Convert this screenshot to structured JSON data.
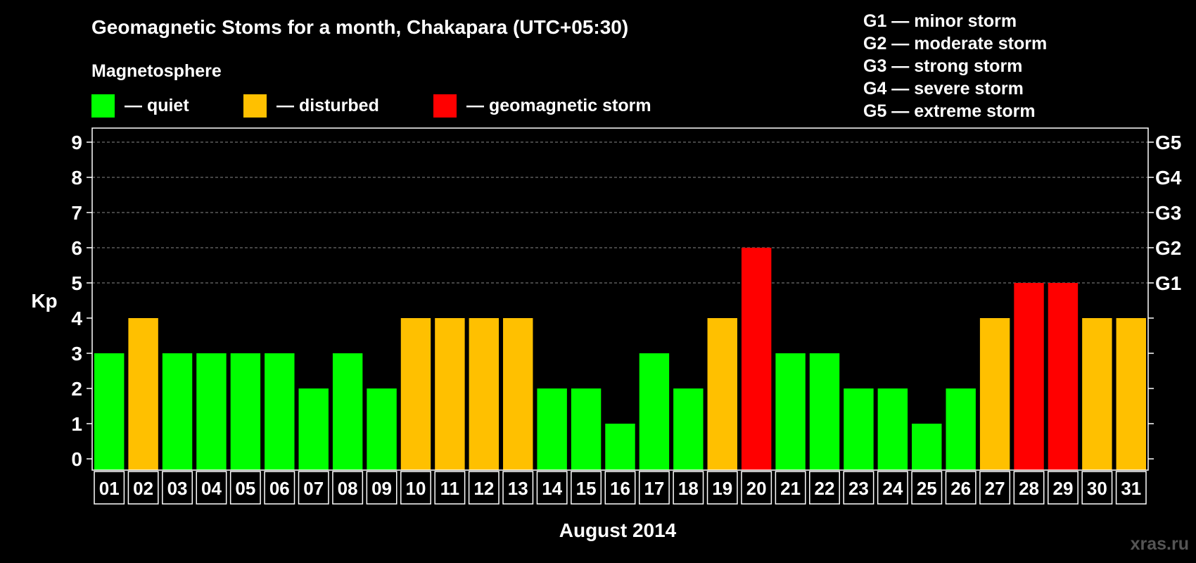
{
  "chart_data": {
    "type": "bar",
    "title": "Geomagnetic Stoms for a month, Chakapara (UTC+05:30)",
    "xlabel": "August 2014",
    "ylabel": "Kp",
    "ylim": [
      0,
      9
    ],
    "y_ticks": [
      "0",
      "1",
      "2",
      "3",
      "4",
      "5",
      "6",
      "7",
      "8",
      "9"
    ],
    "right_ticks": [
      {
        "kp": 5,
        "label": "G1"
      },
      {
        "kp": 6,
        "label": "G2"
      },
      {
        "kp": 7,
        "label": "G3"
      },
      {
        "kp": 8,
        "label": "G4"
      },
      {
        "kp": 9,
        "label": "G5"
      }
    ],
    "categories": [
      "01",
      "02",
      "03",
      "04",
      "05",
      "06",
      "07",
      "08",
      "09",
      "10",
      "11",
      "12",
      "13",
      "14",
      "15",
      "16",
      "17",
      "18",
      "19",
      "20",
      "21",
      "22",
      "23",
      "24",
      "25",
      "26",
      "27",
      "28",
      "29",
      "30",
      "31"
    ],
    "values": [
      3,
      4,
      3,
      3,
      3,
      3,
      2,
      3,
      2,
      4,
      4,
      4,
      4,
      2,
      2,
      1,
      3,
      2,
      4,
      6,
      3,
      3,
      2,
      2,
      1,
      2,
      4,
      5,
      5,
      4,
      4
    ],
    "grid": "dashed at Kp 5-9",
    "legend_heading": "Magnetosphere",
    "legend": [
      {
        "label": "— quiet",
        "color": "#00ff00"
      },
      {
        "label": "— disturbed",
        "color": "#ffc000"
      },
      {
        "label": "— geomagnetic storm",
        "color": "#ff0000"
      }
    ],
    "storm_scale": [
      "G1 — minor storm",
      "G2 — moderate storm",
      "G3 — strong storm",
      "G4 — severe storm",
      "G5 — extreme storm"
    ],
    "colors": {
      "quiet": "#00ff00",
      "disturbed": "#ffc000",
      "storm": "#ff0000",
      "background": "#000000"
    }
  },
  "watermark": "xras.ru"
}
